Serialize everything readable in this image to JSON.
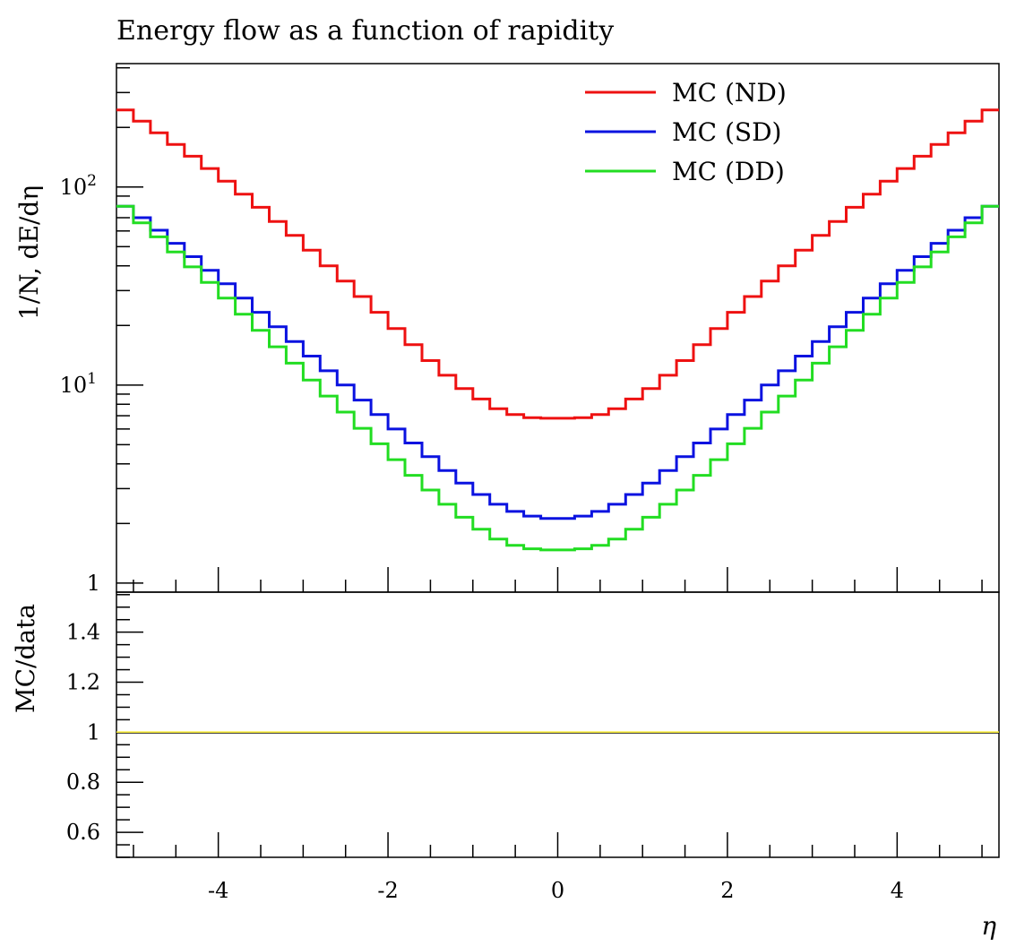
{
  "chart_data": [
    {
      "type": "line",
      "step": true,
      "title": "Energy flow as a function of rapidity",
      "ylabel": "1/N, dE/dη",
      "xlabel": "η",
      "yscale": "log",
      "xlim": [
        -5.2,
        5.2
      ],
      "ylim": [
        0.9,
        420
      ],
      "y_ticks": [
        {
          "value": 1,
          "label": "1"
        },
        {
          "value": 10,
          "label": "10",
          "exp": "1"
        },
        {
          "value": 100,
          "label": "10",
          "exp": "2"
        }
      ],
      "x_ticks": [
        "-4",
        "-2",
        "0",
        "2",
        "4"
      ],
      "legend_position": "top-right",
      "x_edges": [
        -5.2,
        -5.0,
        -4.8,
        -4.6,
        -4.4,
        -4.2,
        -4.0,
        -3.8,
        -3.6,
        -3.4,
        -3.2,
        -3.0,
        -2.8,
        -2.6,
        -2.4,
        -2.2,
        -2.0,
        -1.8,
        -1.6,
        -1.4,
        -1.2,
        -1.0,
        -0.8,
        -0.6,
        -0.4,
        -0.2,
        0.0,
        0.2,
        0.4,
        0.6,
        0.8,
        1.0,
        1.2,
        1.4,
        1.6,
        1.8,
        2.0,
        2.2,
        2.4,
        2.6,
        2.8,
        3.0,
        3.2,
        3.4,
        3.6,
        3.8,
        4.0,
        4.2,
        4.4,
        4.6,
        4.8,
        5.0,
        5.2
      ],
      "series": [
        {
          "name": "MC (ND)",
          "color": "#ee1111",
          "values": [
            245,
            215,
            188,
            164,
            143,
            124,
            107,
            92,
            79,
            67,
            57,
            48,
            40,
            33.5,
            28,
            23.3,
            19.3,
            16,
            13.3,
            11.2,
            9.6,
            8.5,
            7.6,
            7.1,
            6.85,
            6.8,
            6.8,
            6.85,
            7.1,
            7.6,
            8.5,
            9.6,
            11.2,
            13.3,
            16,
            19.3,
            23.3,
            28,
            33.5,
            40,
            48,
            57,
            67,
            79,
            92,
            107,
            124,
            143,
            164,
            188,
            215,
            245
          ]
        },
        {
          "name": "MC (SD)",
          "color": "#0a12e0",
          "values": [
            80,
            70,
            60.5,
            52,
            44.5,
            38,
            32.5,
            27.5,
            23.3,
            19.7,
            16.6,
            14,
            11.8,
            10,
            8.4,
            7.1,
            6,
            5.1,
            4.35,
            3.7,
            3.2,
            2.8,
            2.5,
            2.3,
            2.18,
            2.12,
            2.12,
            2.18,
            2.3,
            2.5,
            2.8,
            3.2,
            3.7,
            4.35,
            5.1,
            6,
            7.1,
            8.4,
            10,
            11.8,
            14,
            16.6,
            19.7,
            23.3,
            27.5,
            32.5,
            38,
            44.5,
            52,
            60.5,
            70,
            80
          ]
        },
        {
          "name": "MC (DD)",
          "color": "#22dd22",
          "values": [
            80,
            66,
            56,
            47,
            39.5,
            33,
            27.5,
            22.8,
            18.9,
            15.6,
            12.9,
            10.6,
            8.8,
            7.3,
            6.05,
            5.05,
            4.2,
            3.5,
            2.95,
            2.5,
            2.15,
            1.87,
            1.67,
            1.55,
            1.49,
            1.47,
            1.47,
            1.49,
            1.55,
            1.67,
            1.87,
            2.15,
            2.5,
            2.95,
            3.5,
            4.2,
            5.05,
            6.05,
            7.3,
            8.8,
            10.6,
            12.9,
            15.6,
            18.9,
            22.8,
            27.5,
            33,
            39.5,
            47,
            56,
            66,
            80
          ]
        }
      ]
    },
    {
      "type": "line",
      "ylabel": "MC/data",
      "xlabel": "η",
      "xlim": [
        -5.2,
        5.2
      ],
      "ylim": [
        0.5,
        1.56
      ],
      "y_ticks": [
        "0.6",
        "0.8",
        "1",
        "1.2",
        "1.4"
      ],
      "x_ticks": [
        "-4",
        "-2",
        "0",
        "2",
        "4"
      ],
      "series": [
        {
          "color": "#f5e93a",
          "y": 1.0
        }
      ]
    }
  ]
}
